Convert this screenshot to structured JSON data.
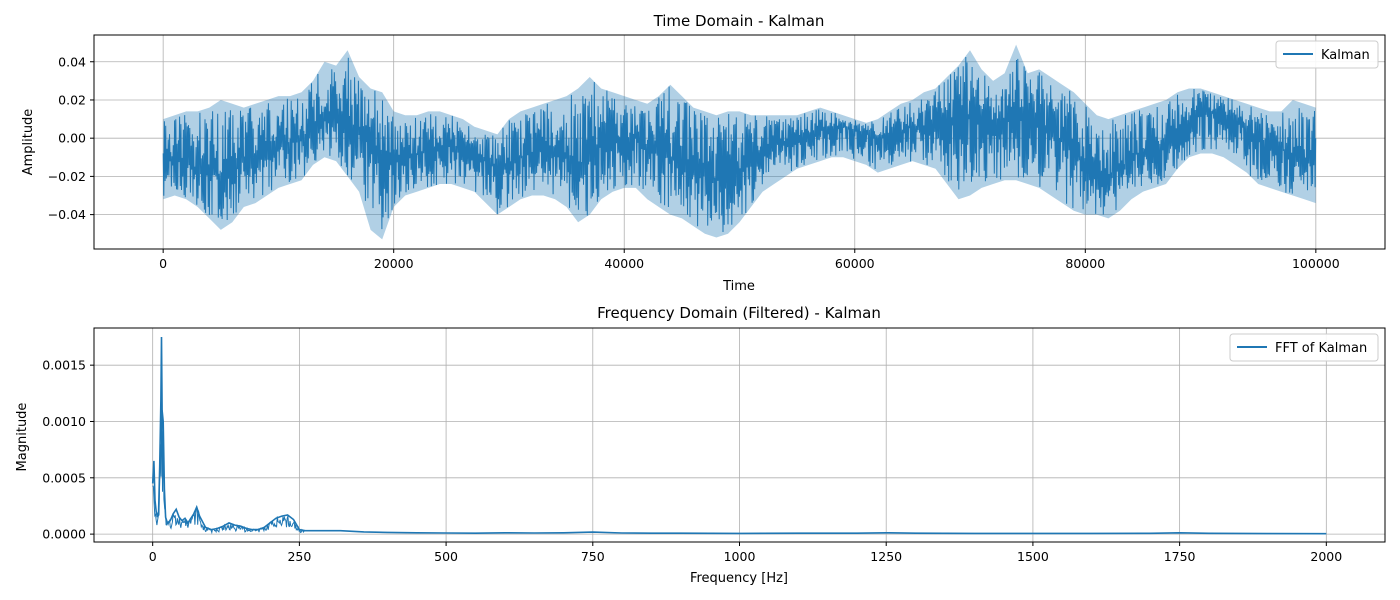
{
  "chart_data": [
    {
      "type": "line",
      "title": "Time Domain - Kalman",
      "xlabel": "Time",
      "ylabel": "Amplitude",
      "xlim": [
        -6000,
        106000
      ],
      "ylim": [
        -0.058,
        0.054
      ],
      "xticks": [
        0,
        20000,
        40000,
        60000,
        80000,
        100000
      ],
      "xtick_labels": [
        "0",
        "20000",
        "40000",
        "60000",
        "80000",
        "100000"
      ],
      "yticks": [
        -0.04,
        -0.02,
        0.0,
        0.02,
        0.04
      ],
      "ytick_labels": [
        "−0.04",
        "−0.02",
        "0.00",
        "0.02",
        "0.04"
      ],
      "grid": true,
      "legend": "top-right",
      "color": "#1f77b4",
      "series": [
        {
          "name": "Kalman",
          "x": [
            0,
            1000,
            2000,
            3000,
            4000,
            5000,
            6000,
            7000,
            8000,
            9000,
            10000,
            11000,
            12000,
            13000,
            14000,
            15000,
            16000,
            17000,
            18000,
            19000,
            20000,
            21000,
            22000,
            23000,
            24000,
            25000,
            26000,
            27000,
            28000,
            29000,
            30000,
            31000,
            32000,
            33000,
            34000,
            35000,
            36000,
            37000,
            38000,
            39000,
            40000,
            41000,
            42000,
            43000,
            44000,
            45000,
            46000,
            47000,
            48000,
            49000,
            50000,
            51000,
            52000,
            53000,
            54000,
            55000,
            56000,
            57000,
            58000,
            59000,
            60000,
            61000,
            62000,
            63000,
            64000,
            65000,
            66000,
            67000,
            68000,
            69000,
            70000,
            71000,
            72000,
            73000,
            74000,
            75000,
            76000,
            77000,
            78000,
            79000,
            80000,
            81000,
            82000,
            83000,
            84000,
            85000,
            86000,
            87000,
            88000,
            89000,
            90000,
            91000,
            92000,
            93000,
            94000,
            95000,
            96000,
            97000,
            98000,
            99000,
            100000
          ],
          "y_mean": [
            -0.012,
            -0.01,
            -0.012,
            -0.016,
            -0.018,
            -0.02,
            -0.016,
            -0.012,
            -0.01,
            -0.006,
            -0.004,
            -0.002,
            0.0,
            0.006,
            0.01,
            0.012,
            0.008,
            0.004,
            -0.004,
            -0.008,
            -0.01,
            -0.01,
            -0.008,
            -0.006,
            -0.004,
            -0.004,
            -0.006,
            -0.008,
            -0.012,
            -0.016,
            -0.014,
            -0.01,
            -0.008,
            -0.006,
            -0.006,
            -0.008,
            -0.014,
            -0.01,
            -0.004,
            -0.002,
            0.0,
            0.0,
            -0.004,
            -0.008,
            -0.01,
            -0.012,
            -0.016,
            -0.02,
            -0.022,
            -0.02,
            -0.016,
            -0.012,
            -0.008,
            -0.004,
            -0.002,
            0.0,
            0.002,
            0.004,
            0.006,
            0.006,
            0.004,
            0.002,
            0.0,
            0.002,
            0.004,
            0.006,
            0.006,
            0.008,
            0.01,
            0.012,
            0.012,
            0.01,
            0.008,
            0.01,
            0.01,
            0.008,
            0.006,
            0.004,
            -0.002,
            -0.008,
            -0.014,
            -0.016,
            -0.02,
            -0.016,
            -0.01,
            -0.006,
            -0.004,
            -0.002,
            0.004,
            0.01,
            0.012,
            0.014,
            0.012,
            0.01,
            0.006,
            0.0,
            -0.004,
            -0.006,
            -0.008,
            -0.01,
            -0.012
          ],
          "y_min": [
            -0.032,
            -0.03,
            -0.032,
            -0.036,
            -0.042,
            -0.048,
            -0.044,
            -0.036,
            -0.034,
            -0.03,
            -0.026,
            -0.024,
            -0.022,
            -0.014,
            -0.01,
            -0.012,
            -0.02,
            -0.028,
            -0.048,
            -0.053,
            -0.036,
            -0.03,
            -0.028,
            -0.026,
            -0.024,
            -0.024,
            -0.026,
            -0.028,
            -0.034,
            -0.04,
            -0.036,
            -0.032,
            -0.03,
            -0.03,
            -0.032,
            -0.036,
            -0.044,
            -0.04,
            -0.032,
            -0.028,
            -0.026,
            -0.026,
            -0.032,
            -0.036,
            -0.04,
            -0.042,
            -0.046,
            -0.05,
            -0.052,
            -0.05,
            -0.044,
            -0.036,
            -0.028,
            -0.024,
            -0.02,
            -0.016,
            -0.014,
            -0.012,
            -0.01,
            -0.01,
            -0.012,
            -0.014,
            -0.018,
            -0.016,
            -0.014,
            -0.012,
            -0.014,
            -0.016,
            -0.024,
            -0.032,
            -0.03,
            -0.026,
            -0.024,
            -0.022,
            -0.022,
            -0.024,
            -0.026,
            -0.03,
            -0.034,
            -0.038,
            -0.04,
            -0.04,
            -0.042,
            -0.038,
            -0.032,
            -0.028,
            -0.026,
            -0.024,
            -0.016,
            -0.01,
            -0.008,
            -0.008,
            -0.01,
            -0.014,
            -0.018,
            -0.024,
            -0.026,
            -0.028,
            -0.03,
            -0.032,
            -0.034
          ],
          "y_max": [
            0.01,
            0.012,
            0.014,
            0.014,
            0.016,
            0.02,
            0.018,
            0.016,
            0.018,
            0.02,
            0.022,
            0.022,
            0.024,
            0.03,
            0.04,
            0.038,
            0.046,
            0.032,
            0.026,
            0.024,
            0.014,
            0.012,
            0.012,
            0.014,
            0.014,
            0.012,
            0.01,
            0.006,
            0.004,
            0.002,
            0.01,
            0.014,
            0.016,
            0.018,
            0.02,
            0.022,
            0.026,
            0.032,
            0.026,
            0.024,
            0.022,
            0.02,
            0.018,
            0.022,
            0.028,
            0.022,
            0.016,
            0.014,
            0.012,
            0.014,
            0.014,
            0.012,
            0.012,
            0.012,
            0.012,
            0.012,
            0.014,
            0.016,
            0.014,
            0.012,
            0.01,
            0.008,
            0.01,
            0.014,
            0.018,
            0.02,
            0.024,
            0.026,
            0.032,
            0.038,
            0.046,
            0.036,
            0.03,
            0.034,
            0.049,
            0.034,
            0.036,
            0.032,
            0.028,
            0.024,
            0.018,
            0.012,
            0.01,
            0.012,
            0.014,
            0.016,
            0.018,
            0.02,
            0.024,
            0.026,
            0.026,
            0.024,
            0.022,
            0.02,
            0.018,
            0.016,
            0.014,
            0.014,
            0.02,
            0.018,
            0.016
          ]
        }
      ]
    },
    {
      "type": "line",
      "title": "Frequency Domain (Filtered) - Kalman",
      "xlabel": "Frequency [Hz]",
      "ylabel": "Magnitude",
      "xlim": [
        -100,
        2100
      ],
      "ylim": [
        -7e-05,
        0.00183
      ],
      "xticks": [
        0,
        250,
        500,
        750,
        1000,
        1250,
        1500,
        1750,
        2000
      ],
      "xtick_labels": [
        "0",
        "250",
        "500",
        "750",
        "1000",
        "1250",
        "1500",
        "1750",
        "2000"
      ],
      "yticks": [
        0.0,
        0.0005,
        0.001,
        0.0015
      ],
      "ytick_labels": [
        "0.0000",
        "0.0005",
        "0.0010",
        "0.0015"
      ],
      "grid": true,
      "legend": "top-right",
      "color": "#1f77b4",
      "series": [
        {
          "name": "FFT of Kalman",
          "x": [
            0,
            2,
            4,
            6,
            8,
            10,
            12,
            14,
            15,
            16,
            18,
            20,
            22,
            25,
            30,
            35,
            40,
            45,
            50,
            55,
            60,
            70,
            75,
            80,
            90,
            100,
            110,
            120,
            130,
            140,
            150,
            160,
            170,
            180,
            190,
            200,
            210,
            220,
            230,
            240,
            250,
            260,
            280,
            300,
            320,
            340,
            360,
            400,
            450,
            500,
            550,
            600,
            650,
            700,
            750,
            800,
            850,
            900,
            1000,
            1100,
            1200,
            1250,
            1300,
            1400,
            1500,
            1600,
            1700,
            1750,
            1800,
            1900,
            2000
          ],
          "y": [
            0.00045,
            0.00065,
            0.0003,
            0.0002,
            0.00015,
            0.0002,
            0.0006,
            0.0012,
            0.00175,
            0.0011,
            0.001,
            0.0004,
            0.00015,
            0.0001,
            0.00012,
            0.00018,
            0.00022,
            0.00015,
            0.00012,
            0.00014,
            0.0001,
            0.00018,
            0.00024,
            0.00016,
            6e-05,
            4e-05,
            5e-05,
            7e-05,
            0.0001,
            8e-05,
            7e-05,
            5e-05,
            4e-05,
            4e-05,
            6e-05,
            0.0001,
            0.00014,
            0.00016,
            0.00017,
            0.00013,
            4e-05,
            3e-05,
            3e-05,
            3e-05,
            3e-05,
            2.5e-05,
            2e-05,
            1.5e-05,
            1.2e-05,
            1e-05,
            8e-06,
            1.2e-05,
            1e-05,
            1.2e-05,
            1.8e-05,
            1e-05,
            8e-06,
            8e-06,
            6e-06,
            8e-06,
            8e-06,
            1.2e-05,
            8e-06,
            6e-06,
            6e-06,
            6e-06,
            7e-06,
            1.2e-05,
            7e-06,
            5e-06,
            4e-06
          ]
        }
      ]
    }
  ]
}
